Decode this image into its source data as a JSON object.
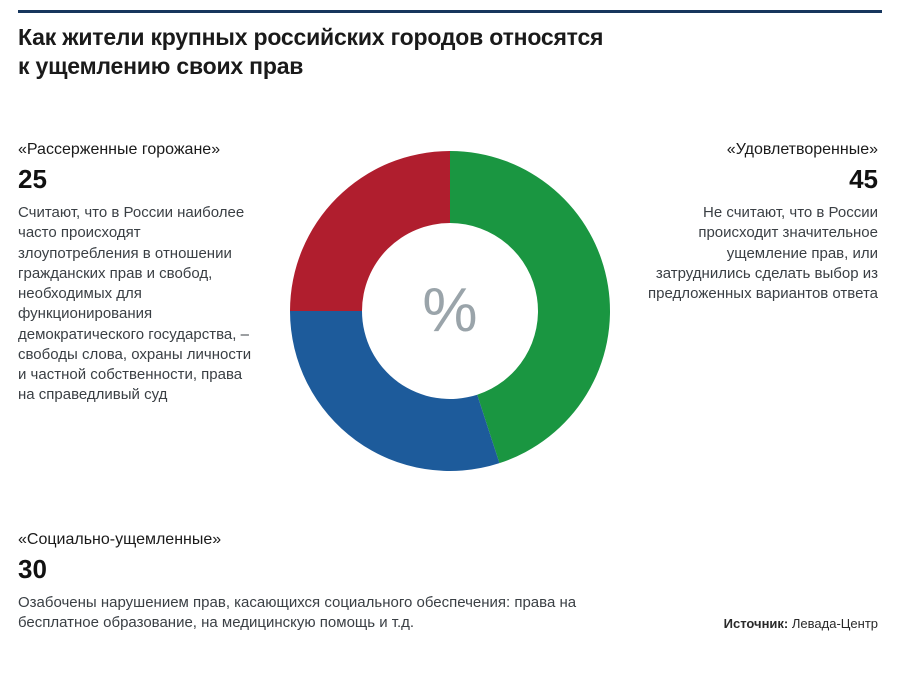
{
  "title_line1": "Как жители крупных российских городов относятся",
  "title_line2": "к ущемлению своих прав",
  "center_symbol": "%",
  "donut": {
    "type": "pie",
    "inner_radius_ratio": 0.55,
    "outer_radius": 160,
    "background_color": "#ffffff",
    "center_symbol_color": "#9aa4aa",
    "center_symbol_fontsize": 62,
    "start_angle_deg": 0,
    "title_fontsize": 23,
    "title_fontweight": 700,
    "top_rule_color": "#17365d",
    "slices": [
      {
        "key": "satisfied",
        "value": 45,
        "color": "#1a9641"
      },
      {
        "key": "social",
        "value": 30,
        "color": "#1d5b9b"
      },
      {
        "key": "angry",
        "value": 25,
        "color": "#b01e2e"
      }
    ]
  },
  "segments": {
    "angry": {
      "label": "«Рассерженные горожане»",
      "value": "25",
      "desc": "Считают, что в России наиболее часто происходят злоупотребления в отношении гражданских прав и свобод, необходимых для функционирования демократического государства, – свободы слова, охраны личности и частной собственности, права на справедливый суд"
    },
    "satisfied": {
      "label": "«Удовлетворенные»",
      "value": "45",
      "desc": "Не считают, что в России происходит значительное ущемление прав, или затруднились сделать выбор из предложенных вариантов ответа"
    },
    "social": {
      "label": "«Социально-ущемленные»",
      "value": "30",
      "desc": "Озабочены нарушением прав, касающихся социального обеспечения: права на бесплатное образование, на медицинскую помощь и т.д."
    }
  },
  "source": {
    "label": "Источник:",
    "value": "Левада-Центр"
  }
}
